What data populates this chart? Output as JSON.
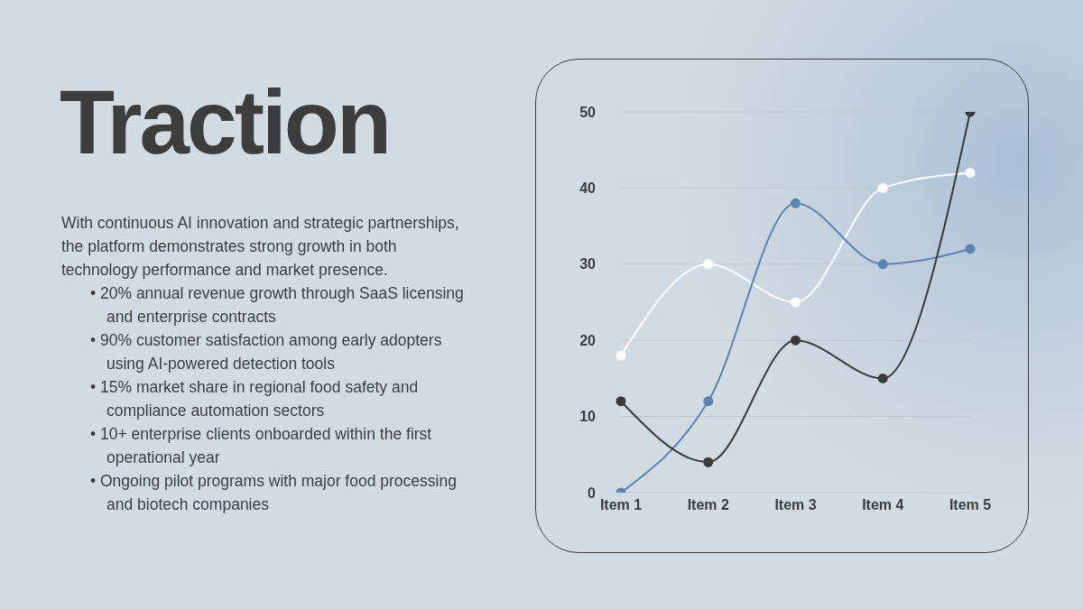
{
  "chart_data": {
    "type": "line",
    "title": "Traction",
    "annotations": [
      "With continuous AI innovation and strategic partnerships, the platform demonstrates strong growth in both technology performance and market presence.",
      "• 20% annual revenue growth through SaaS licensing and enterprise contracts",
      "• 90% customer satisfaction among early adopters using AI-powered detection tools",
      "• 15% market share in regional food safety and compliance automation sectors",
      "• 10+ enterprise clients onboarded within the first operational year",
      "• Ongoing pilot programs with major food processing and biotech companies"
    ],
    "categories": [
      "Item 1",
      "Item 2",
      "Item 3",
      "Item 4",
      "Item 5"
    ],
    "series": [
      {
        "color": "#ffffff",
        "values": [
          18,
          30,
          25,
          40,
          42
        ]
      },
      {
        "color": "#5b84b1",
        "values": [
          0,
          12,
          38,
          30,
          32
        ]
      },
      {
        "color": "#3a3a3a",
        "values": [
          12,
          4,
          20,
          15,
          50
        ]
      }
    ],
    "ylim": [
      0,
      50
    ],
    "yticks": [
      0,
      10,
      20,
      30,
      40,
      50
    ],
    "grid": "y",
    "legend": false,
    "marker": "circle",
    "line_style": "solid"
  }
}
